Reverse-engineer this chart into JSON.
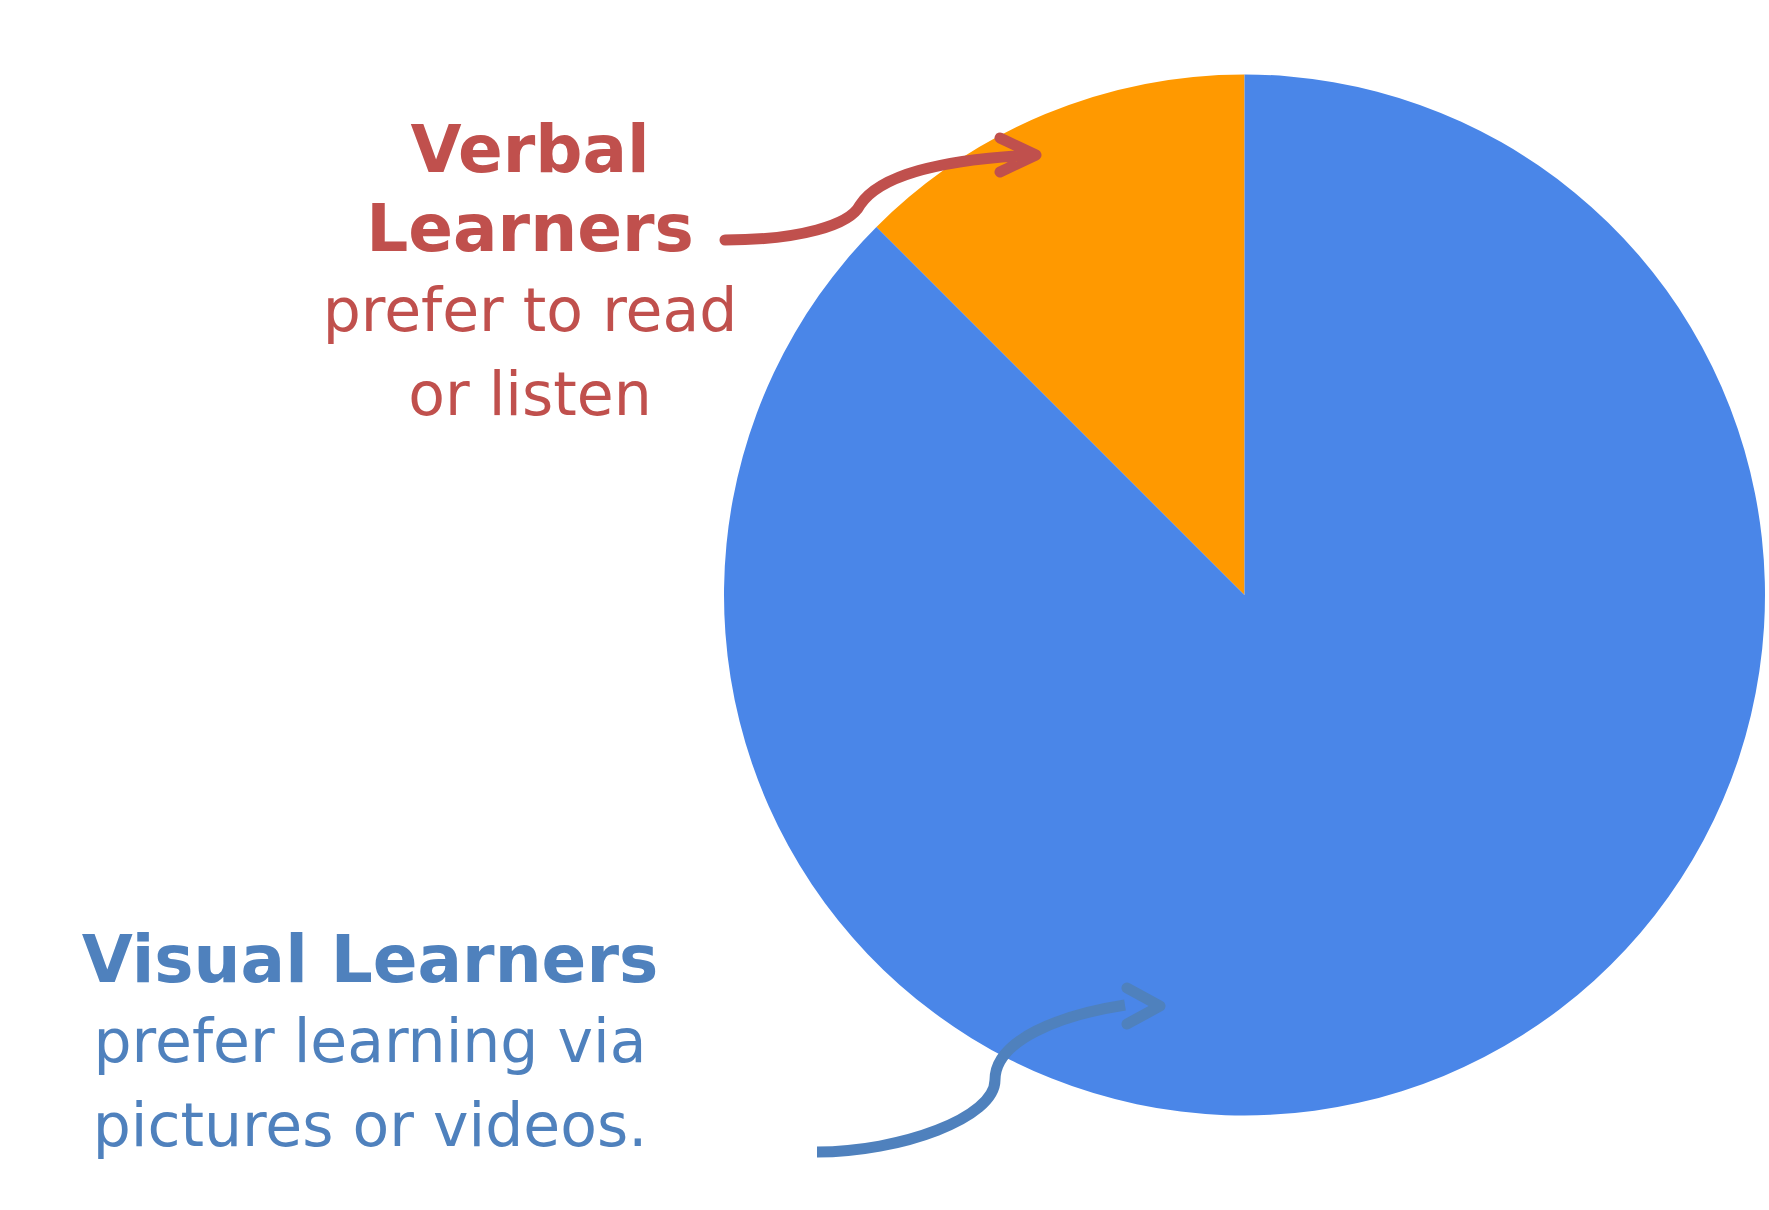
{
  "chart_data": {
    "type": "pie",
    "categories": [
      "Verbal Learners",
      "Visual Learners"
    ],
    "values": [
      12.5,
      87.5
    ],
    "colors": [
      "#ff9900",
      "#4a86e8"
    ],
    "legend": false,
    "annotations": [
      "prefer to read or listen",
      "prefer learning via pictures or videos."
    ]
  }
}
